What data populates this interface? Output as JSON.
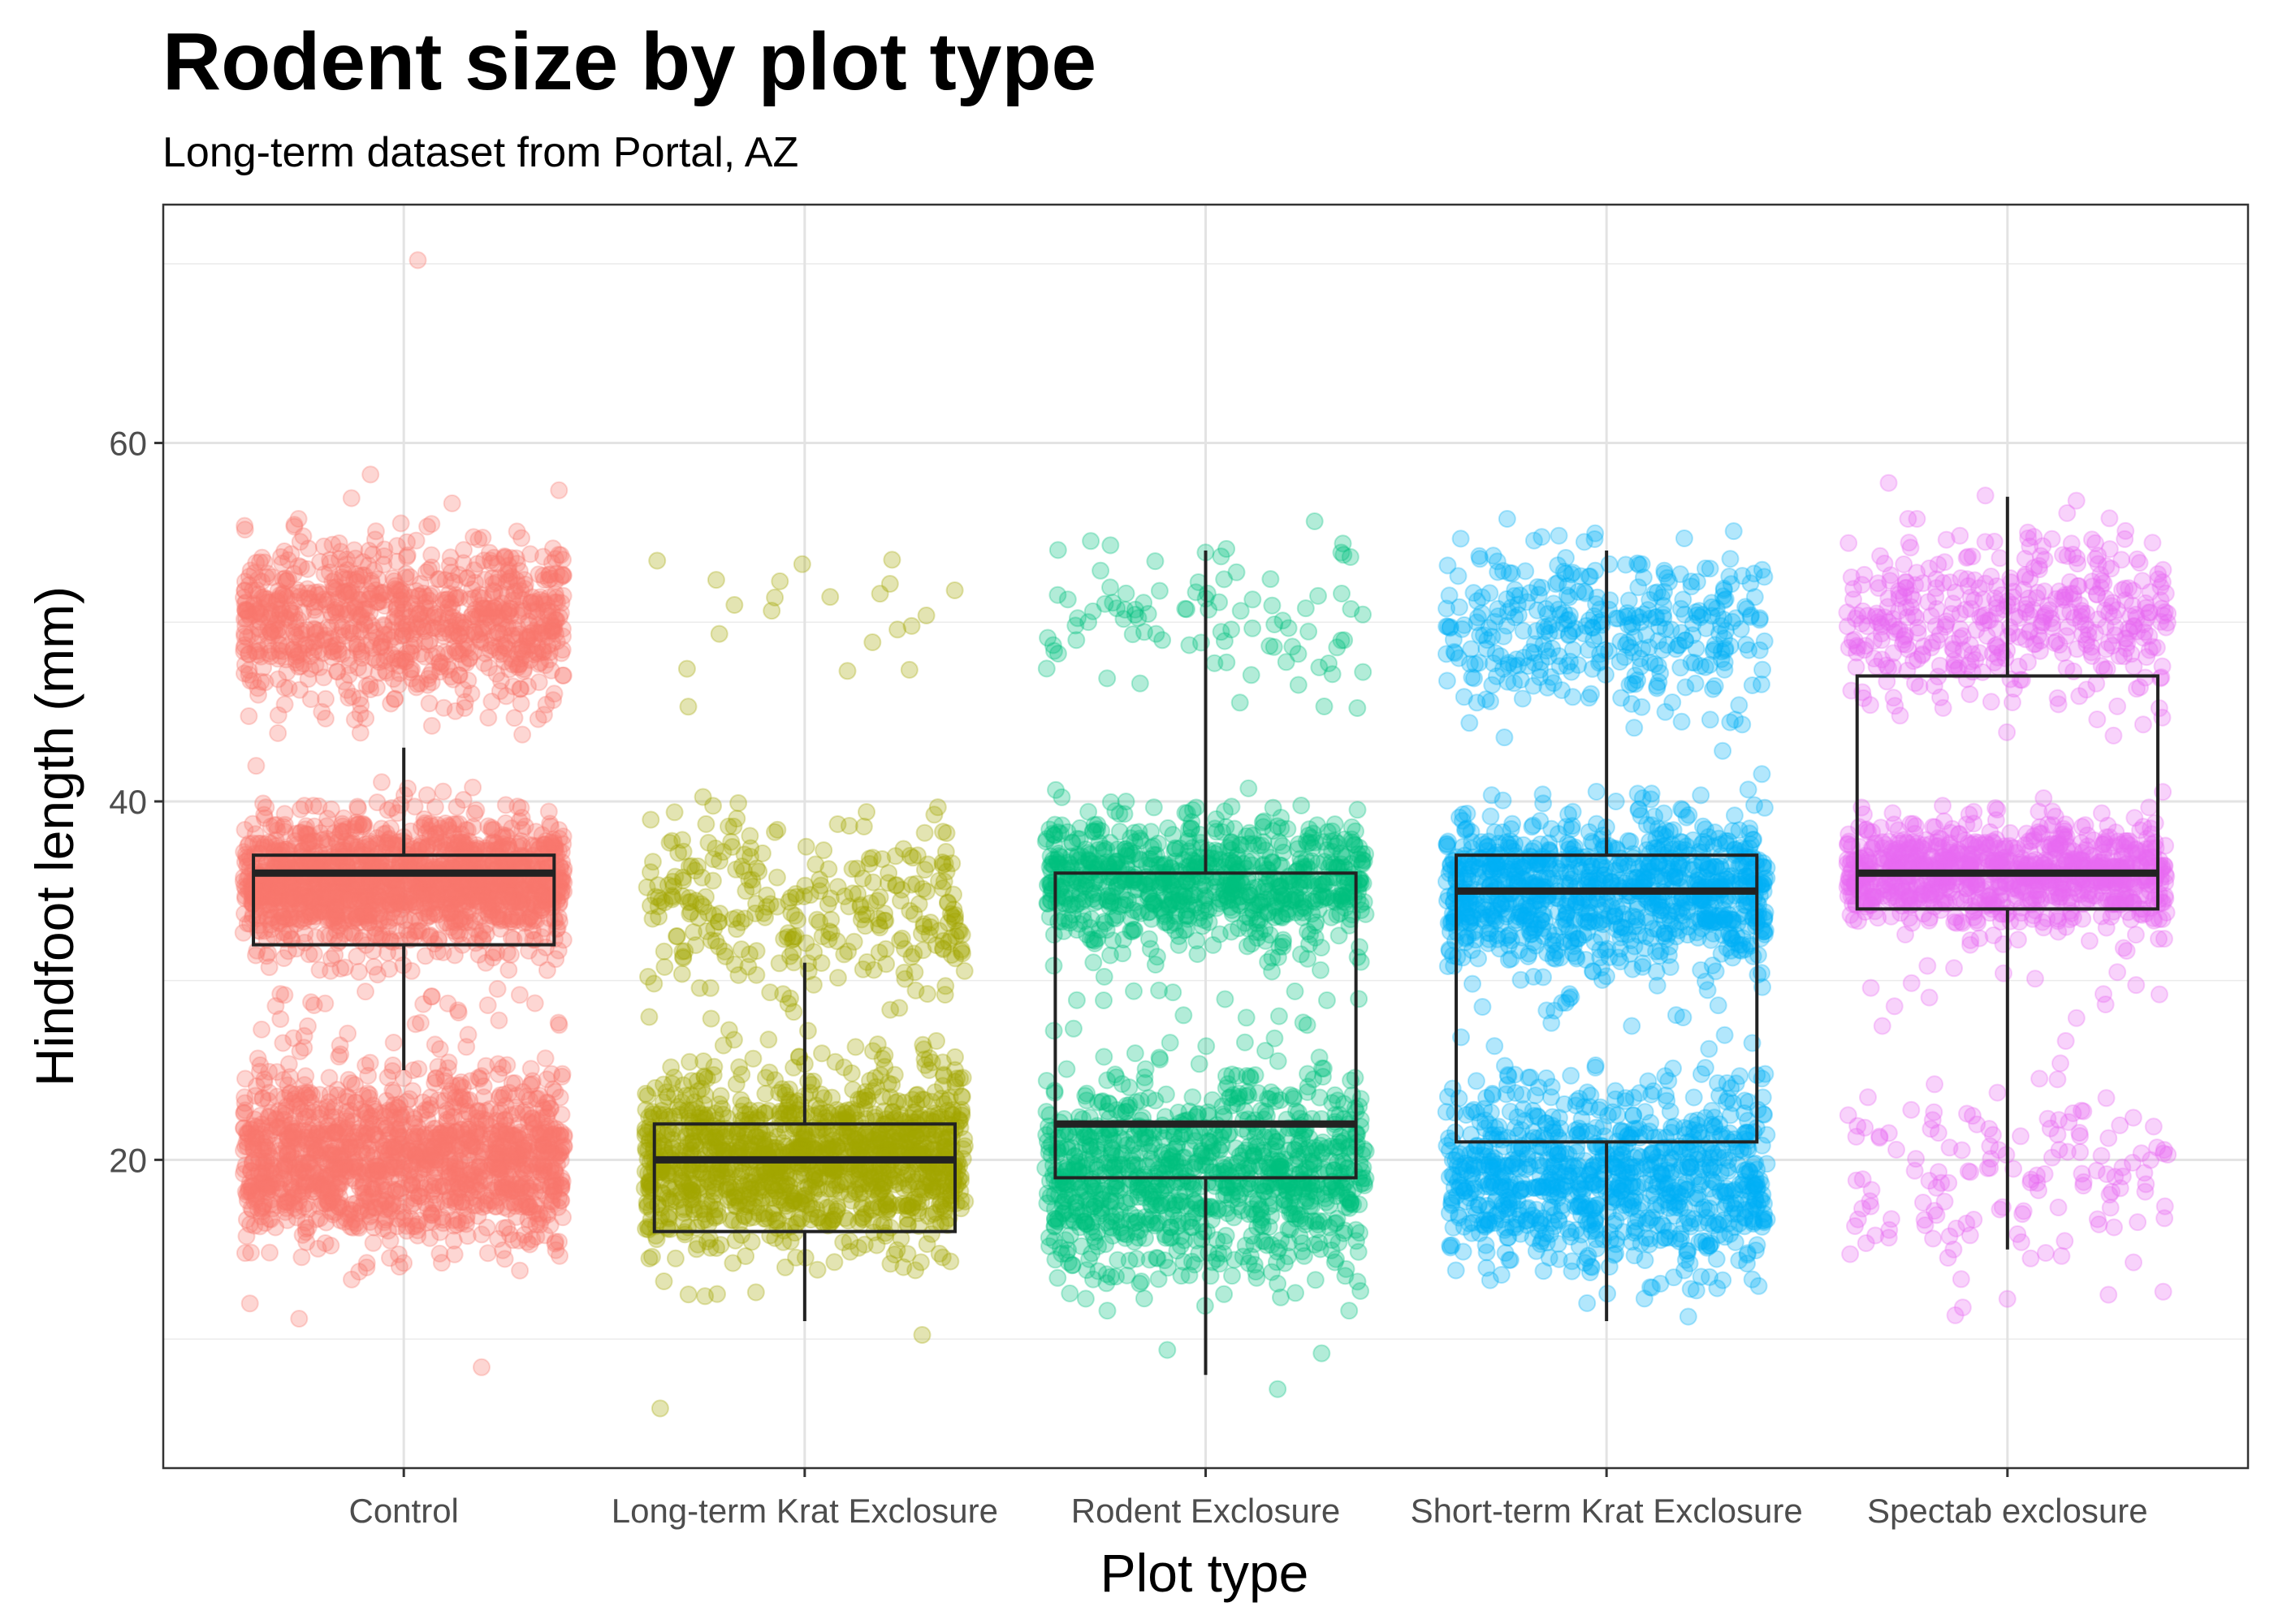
{
  "chart_data": {
    "type": "boxplot with jittered points",
    "title": "Rodent size by plot type",
    "subtitle": "Long-term dataset from Portal, AZ",
    "xlabel": "Plot type",
    "ylabel": "Hindfoot length (mm)",
    "ylim": [
      2.8,
      73.3
    ],
    "yticks": [
      20,
      40,
      60
    ],
    "ytick_labels": [
      "20",
      "40",
      "60"
    ],
    "grid": true,
    "legend": "none",
    "categories": [
      "Control",
      "Long-term Krat Exclosure",
      "Rodent Exclosure",
      "Short-term Krat Exclosure",
      "Spectab exclosure"
    ],
    "colors": [
      "#F8766D",
      "#A3A500",
      "#00BF7D",
      "#00B0F6",
      "#E76BF3"
    ],
    "point_alpha": 0.3,
    "boxes": [
      {
        "category": "Control",
        "whisker_low": 25,
        "q1": 32,
        "median": 36,
        "q3": 37,
        "whisker_high": 43
      },
      {
        "category": "Long-term Krat Exclosure",
        "whisker_low": 11,
        "q1": 16,
        "median": 20,
        "q3": 22,
        "whisker_high": 31
      },
      {
        "category": "Rodent Exclosure",
        "whisker_low": 8,
        "q1": 19,
        "median": 22,
        "q3": 36,
        "whisker_high": 54
      },
      {
        "category": "Short-term Krat Exclosure",
        "whisker_low": 11,
        "q1": 21,
        "median": 35,
        "q3": 37,
        "whisker_high": 54
      },
      {
        "category": "Spectab exclosure",
        "whisker_low": 15,
        "q1": 34,
        "median": 36,
        "q3": 47,
        "whisker_high": 57
      }
    ],
    "point_clusters": [
      {
        "category": "Control",
        "clusters": [
          {
            "center": 50,
            "sd": 2.2,
            "n": 900
          },
          {
            "center": 35.5,
            "sd": 1.6,
            "n": 1600
          },
          {
            "center": 20,
            "sd": 2.2,
            "n": 1400
          },
          {
            "center": 28,
            "sd": 3,
            "n": 60
          }
        ],
        "extra": [
          70,
          57,
          58,
          9,
          11,
          12
        ]
      },
      {
        "category": "Long-term Krat Exclosure",
        "clusters": [
          {
            "center": 50,
            "sd": 2,
            "n": 20
          },
          {
            "center": 34,
            "sd": 2.5,
            "n": 280
          },
          {
            "center": 20,
            "sd": 2.3,
            "n": 1300
          },
          {
            "center": 27,
            "sd": 3,
            "n": 40
          }
        ],
        "extra": [
          6,
          11,
          40,
          54
        ]
      },
      {
        "category": "Rodent Exclosure",
        "clusters": [
          {
            "center": 50.5,
            "sd": 1.8,
            "n": 90
          },
          {
            "center": 35.5,
            "sd": 1.7,
            "n": 800
          },
          {
            "center": 19,
            "sd": 2.6,
            "n": 1000
          },
          {
            "center": 27,
            "sd": 3,
            "n": 20
          }
        ],
        "extra": [
          8,
          12,
          45,
          54
        ]
      },
      {
        "category": "Short-term Krat Exclosure",
        "clusters": [
          {
            "center": 49.5,
            "sd": 2.2,
            "n": 350
          },
          {
            "center": 35,
            "sd": 2,
            "n": 1000
          },
          {
            "center": 19,
            "sd": 2.6,
            "n": 900
          },
          {
            "center": 27,
            "sd": 3,
            "n": 20
          }
        ],
        "extra": [
          11,
          13,
          54
        ]
      },
      {
        "category": "Spectab exclosure",
        "clusters": [
          {
            "center": 50,
            "sd": 2.2,
            "n": 420
          },
          {
            "center": 36,
            "sd": 1.3,
            "n": 900
          },
          {
            "center": 19,
            "sd": 2.5,
            "n": 140
          },
          {
            "center": 30,
            "sd": 2.5,
            "n": 25
          }
        ],
        "extra": [
          13,
          57,
          43
        ]
      }
    ]
  }
}
